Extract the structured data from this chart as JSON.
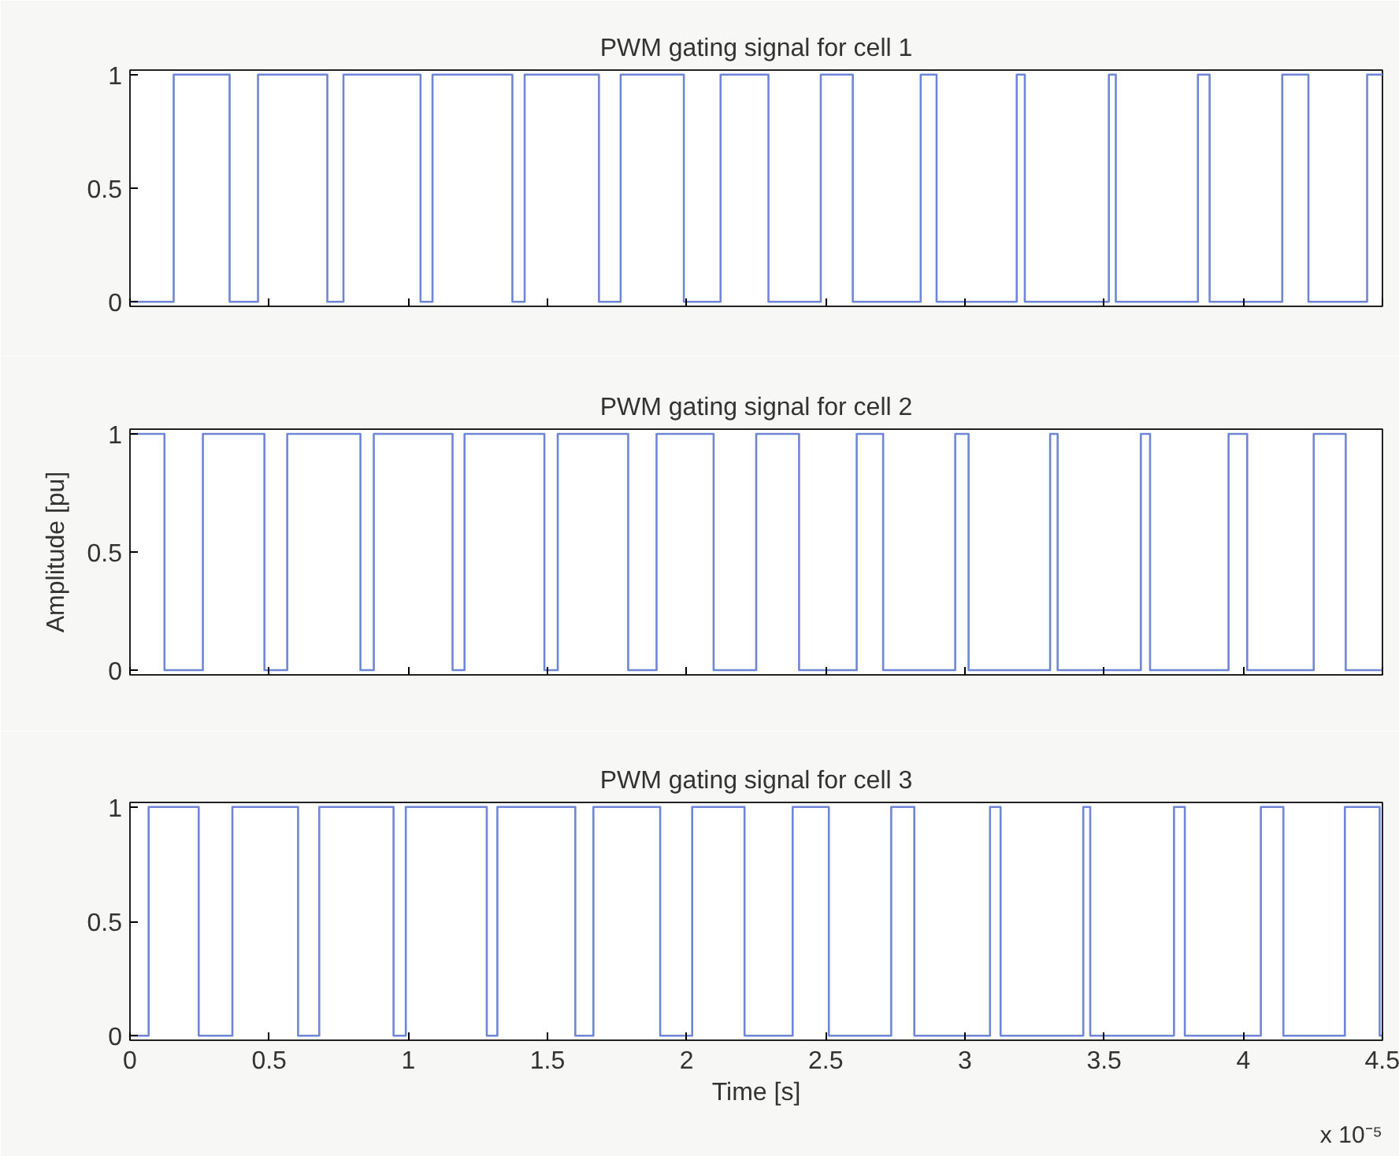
{
  "chart_data": [
    {
      "type": "step",
      "title": "PWM gating signal for cell 1",
      "tick_labels": "y",
      "color": "#6f86d6",
      "grid": false,
      "xlim": [
        0,
        4.5
      ],
      "ylim": [
        -0.02,
        1.02
      ],
      "xticks": [
        0,
        0.5,
        1,
        1.5,
        2,
        2.5,
        3,
        3.5,
        4,
        4.5
      ],
      "yticks": [
        0,
        0.5,
        1
      ],
      "x": [
        0,
        0.157,
        0.358,
        0.46,
        0.709,
        0.767,
        1.044,
        1.087,
        1.374,
        1.418,
        1.685,
        1.763,
        1.99,
        2.122,
        2.294,
        2.482,
        2.597,
        2.841,
        2.898,
        3.186,
        3.215,
        3.517,
        3.542,
        3.837,
        3.879,
        4.14,
        4.234,
        4.445,
        4.5
      ],
      "values": [
        0,
        1,
        0,
        1,
        0,
        1,
        0,
        1,
        0,
        1,
        0,
        1,
        0,
        1,
        0,
        1,
        0,
        1,
        0,
        1,
        0,
        1,
        0,
        1,
        0,
        1,
        0,
        1,
        1
      ]
    },
    {
      "type": "step",
      "title": "PWM gating signal for cell 2",
      "ylabel": "Amplitude [pu]",
      "tick_labels": "y",
      "color": "#6f86d6",
      "grid": false,
      "xlim": [
        0,
        4.5
      ],
      "ylim": [
        -0.02,
        1.02
      ],
      "xticks": [
        0,
        0.5,
        1,
        1.5,
        2,
        2.5,
        3,
        3.5,
        4,
        4.5
      ],
      "yticks": [
        0,
        0.5,
        1
      ],
      "x": [
        0,
        0.124,
        0.262,
        0.483,
        0.565,
        0.828,
        0.876,
        1.159,
        1.202,
        1.489,
        1.537,
        1.79,
        1.892,
        2.097,
        2.25,
        2.404,
        2.611,
        2.706,
        2.965,
        3.013,
        3.306,
        3.333,
        3.632,
        3.665,
        3.947,
        4.014,
        4.253,
        4.368,
        4.5
      ],
      "values": [
        1,
        0,
        1,
        0,
        1,
        0,
        1,
        0,
        1,
        0,
        1,
        0,
        1,
        0,
        1,
        0,
        1,
        0,
        1,
        0,
        1,
        0,
        1,
        0,
        1,
        0,
        1,
        0,
        0
      ]
    },
    {
      "type": "step",
      "title": "PWM gating signal for cell 3",
      "xlabel": "Time [s]",
      "color": "#6f86d6",
      "grid": false,
      "xlim": [
        0,
        4.5
      ],
      "ylim": [
        -0.02,
        1.02
      ],
      "xticks": [
        0,
        0.5,
        1,
        1.5,
        2,
        2.5,
        3,
        3.5,
        4,
        4.5
      ],
      "yticks": [
        0,
        0.5,
        1
      ],
      "annotations": [
        "x 10⁻⁵"
      ],
      "x": [
        0,
        0.067,
        0.247,
        0.368,
        0.604,
        0.68,
        0.947,
        0.991,
        1.282,
        1.32,
        1.6,
        1.665,
        1.905,
        2.02,
        2.208,
        2.381,
        2.511,
        2.735,
        2.818,
        3.09,
        3.128,
        3.425,
        3.45,
        3.751,
        3.79,
        4.063,
        4.144,
        4.365,
        4.49,
        4.5
      ],
      "values": [
        0,
        1,
        0,
        1,
        0,
        1,
        0,
        1,
        0,
        1,
        0,
        1,
        0,
        1,
        0,
        1,
        0,
        1,
        0,
        1,
        0,
        1,
        0,
        1,
        0,
        1,
        0,
        1,
        0,
        0
      ]
    }
  ]
}
